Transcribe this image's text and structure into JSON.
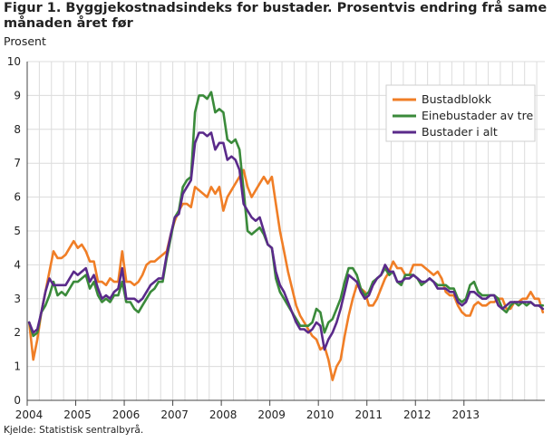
{
  "figure": {
    "title": "Figur 1. Byggjekostnadsindeks for bustader. Prosentvis endring frå same månaden året før",
    "source": "Kjelde: Statistisk sentralbyrå."
  },
  "chart_data": {
    "type": "line",
    "title": "Figur 1. Byggjekostnadsindeks for bustader. Prosentvis endring frå same månaden året før",
    "ylabel": "Prosent",
    "xlabel": "",
    "ylim": [
      0,
      10
    ],
    "yticks": [
      "0",
      "1",
      "2",
      "3",
      "4",
      "5",
      "6",
      "7",
      "8",
      "9",
      "10"
    ],
    "xticks": [
      "2004",
      "2005",
      "2006",
      "2007",
      "2008",
      "2009",
      "2010",
      "2011",
      "2012",
      "2013"
    ],
    "x_start": "2004-01",
    "x_end": "2013-12",
    "grid": true,
    "legend_position": "top-right",
    "series": [
      {
        "name": "Bustadblokk",
        "color": "#f07e26",
        "values": [
          2.3,
          1.2,
          1.8,
          2.6,
          3.2,
          3.8,
          4.4,
          4.2,
          4.2,
          4.3,
          4.5,
          4.7,
          4.5,
          4.6,
          4.4,
          4.1,
          4.1,
          3.5,
          3.5,
          3.4,
          3.6,
          3.5,
          3.5,
          4.4,
          3.5,
          3.5,
          3.4,
          3.5,
          3.7,
          4.0,
          4.1,
          4.1,
          4.2,
          4.3,
          4.4,
          4.9,
          5.3,
          5.6,
          5.8,
          5.8,
          5.7,
          6.3,
          6.2,
          6.1,
          6.0,
          6.3,
          6.1,
          6.3,
          5.6,
          6.0,
          6.2,
          6.4,
          6.6,
          6.8,
          6.3,
          6.0,
          6.2,
          6.4,
          6.6,
          6.4,
          6.6,
          5.8,
          5.0,
          4.4,
          3.8,
          3.3,
          2.8,
          2.5,
          2.3,
          2.1,
          1.9,
          1.8,
          1.5,
          1.6,
          1.2,
          0.6,
          1.0,
          1.2,
          1.9,
          2.5,
          3.0,
          3.4,
          3.3,
          3.2,
          2.8,
          2.8,
          3.0,
          3.3,
          3.6,
          3.8,
          4.1,
          3.9,
          3.9,
          3.7,
          3.7,
          4.0,
          4.0,
          4.0,
          3.9,
          3.8,
          3.7,
          3.8,
          3.6,
          3.2,
          3.1,
          3.1,
          2.8,
          2.6,
          2.5,
          2.5,
          2.8,
          2.9,
          2.8,
          2.8,
          2.9,
          2.9,
          3.0,
          3.0,
          2.7,
          2.7,
          2.9,
          2.9,
          3.0,
          3.0,
          3.2,
          3.0,
          3.0,
          2.6
        ]
      },
      {
        "name": "Einebustader av tre",
        "color": "#3a8a3a",
        "values": [
          2.3,
          1.9,
          2.0,
          2.6,
          2.8,
          3.1,
          3.5,
          3.1,
          3.2,
          3.1,
          3.3,
          3.5,
          3.5,
          3.6,
          3.7,
          3.3,
          3.5,
          3.1,
          2.9,
          3.0,
          2.9,
          3.1,
          3.1,
          3.5,
          2.9,
          2.9,
          2.7,
          2.6,
          2.8,
          3.0,
          3.2,
          3.3,
          3.5,
          3.5,
          4.2,
          4.8,
          5.4,
          5.6,
          6.3,
          6.5,
          6.6,
          8.5,
          9.0,
          9.0,
          8.9,
          9.1,
          8.5,
          8.6,
          8.5,
          7.7,
          7.6,
          7.7,
          7.4,
          6.2,
          5.0,
          4.9,
          5.0,
          5.1,
          4.9,
          4.6,
          4.5,
          3.6,
          3.2,
          3.0,
          2.8,
          2.6,
          2.4,
          2.2,
          2.2,
          2.2,
          2.3,
          2.7,
          2.6,
          2.0,
          2.3,
          2.4,
          2.7,
          3.0,
          3.5,
          3.9,
          3.9,
          3.7,
          3.3,
          3.1,
          3.2,
          3.5,
          3.6,
          3.7,
          3.9,
          3.7,
          3.8,
          3.5,
          3.4,
          3.7,
          3.7,
          3.7,
          3.6,
          3.4,
          3.5,
          3.6,
          3.5,
          3.4,
          3.4,
          3.4,
          3.3,
          3.3,
          3.0,
          2.9,
          3.0,
          3.4,
          3.5,
          3.2,
          3.1,
          3.1,
          3.1,
          3.1,
          3.0,
          2.7,
          2.6,
          2.8,
          2.9,
          2.8,
          2.9,
          2.8,
          2.9,
          2.8,
          2.8,
          2.8
        ]
      },
      {
        "name": "Bustader i alt",
        "color": "#5a2a8a",
        "values": [
          2.3,
          2.0,
          2.1,
          2.6,
          3.2,
          3.6,
          3.4,
          3.4,
          3.4,
          3.4,
          3.6,
          3.8,
          3.7,
          3.8,
          3.9,
          3.5,
          3.7,
          3.3,
          3.0,
          3.1,
          3.0,
          3.2,
          3.3,
          3.9,
          3.0,
          3.0,
          3.0,
          2.9,
          3.0,
          3.2,
          3.4,
          3.5,
          3.6,
          3.6,
          4.3,
          4.9,
          5.4,
          5.5,
          6.1,
          6.3,
          6.5,
          7.6,
          7.9,
          7.9,
          7.8,
          7.9,
          7.4,
          7.6,
          7.6,
          7.1,
          7.2,
          7.1,
          6.8,
          5.8,
          5.6,
          5.4,
          5.3,
          5.4,
          5.0,
          4.6,
          4.5,
          3.8,
          3.4,
          3.2,
          2.9,
          2.6,
          2.3,
          2.1,
          2.1,
          2.0,
          2.1,
          2.3,
          2.2,
          1.5,
          1.8,
          2.0,
          2.3,
          2.7,
          3.2,
          3.7,
          3.6,
          3.5,
          3.2,
          3.0,
          3.1,
          3.4,
          3.6,
          3.7,
          4.0,
          3.8,
          3.8,
          3.5,
          3.5,
          3.6,
          3.6,
          3.7,
          3.6,
          3.5,
          3.5,
          3.6,
          3.5,
          3.3,
          3.3,
          3.3,
          3.2,
          3.2,
          2.9,
          2.8,
          2.9,
          3.2,
          3.2,
          3.1,
          3.0,
          3.0,
          3.1,
          3.1,
          2.8,
          2.7,
          2.8,
          2.9,
          2.9,
          2.9,
          2.9,
          2.9,
          2.9,
          2.8,
          2.8,
          2.7
        ]
      }
    ]
  }
}
